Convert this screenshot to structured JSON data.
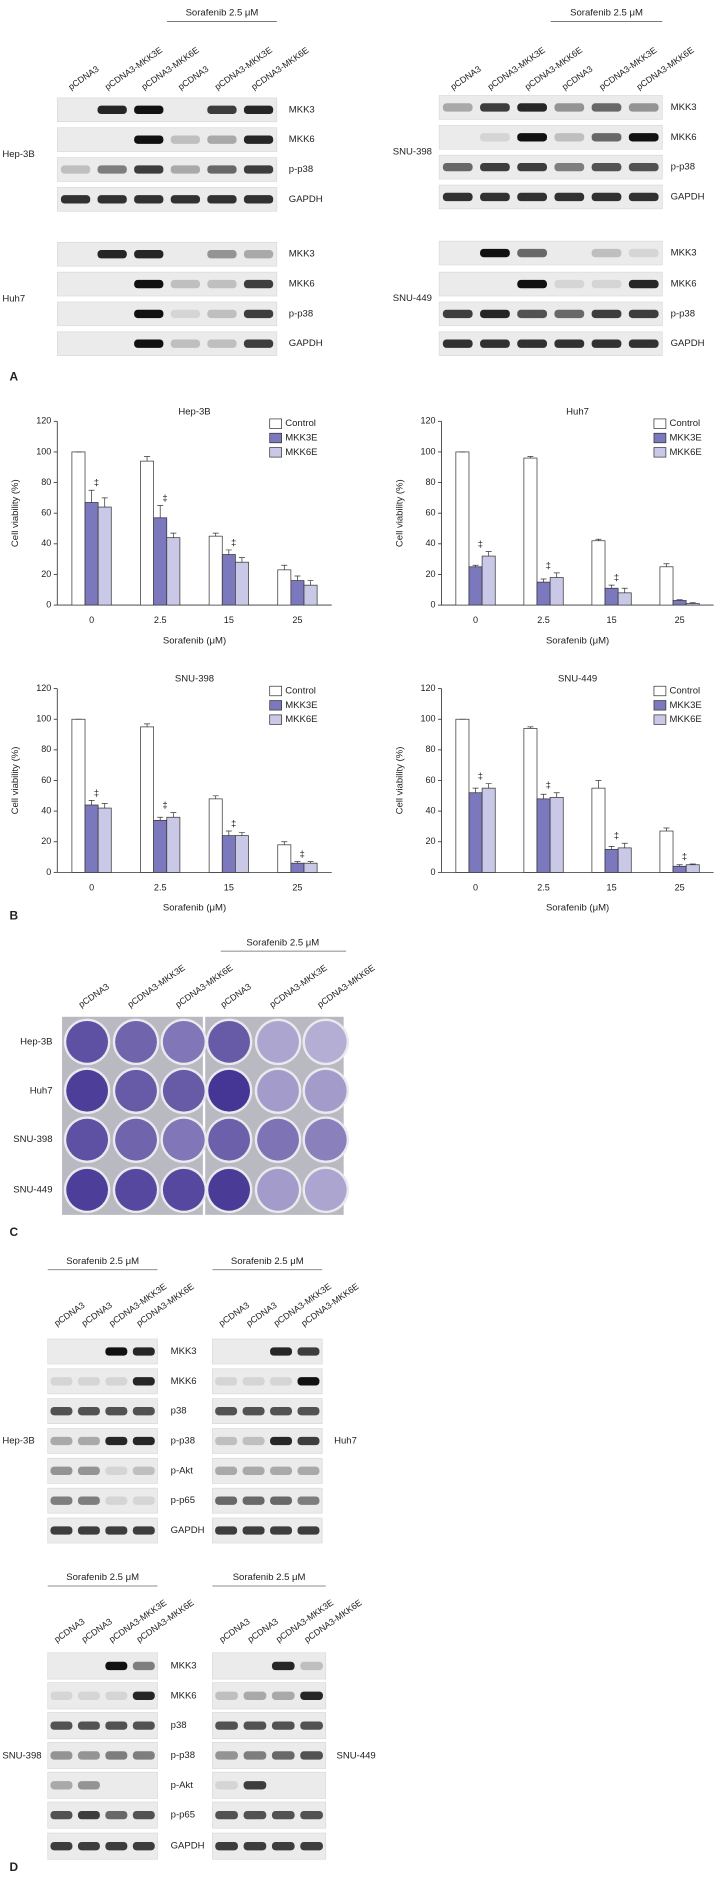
{
  "panel_labels": [
    "A",
    "B",
    "C",
    "D"
  ],
  "panel_a": {
    "blots": [
      {
        "cell_line": "Hep-3B",
        "treatment": "Sorafenib 2.5 μM",
        "lanes": [
          "pCDNA3",
          "pCDNA3-MKK3E",
          "pCDNA3-MKK6E",
          "pCDNA3",
          "pCDNA3-MKK3E",
          "pCDNA3-MKK6E"
        ],
        "proteins": [
          "MKK3",
          "MKK6",
          "p-p38",
          "GAPDH"
        ]
      },
      {
        "cell_line": "Huh7",
        "proteins": [
          "MKK3",
          "MKK6",
          "p-p38",
          "GAPDH"
        ]
      },
      {
        "cell_line": "SNU-398",
        "treatment": "Sorafenib 2.5 μM",
        "lanes": [
          "pCDNA3",
          "pCDNA3-MKK3E",
          "pCDNA3-MKK6E",
          "pCDNA3",
          "pCDNA3-MKK3E",
          "pCDNA3-MKK6E"
        ],
        "proteins": [
          "MKK3",
          "MKK6",
          "p-p38",
          "GAPDH"
        ]
      },
      {
        "cell_line": "SNU-449",
        "proteins": [
          "MKK3",
          "MKK6",
          "p-p38",
          "GAPDH"
        ]
      }
    ]
  },
  "chart_data": [
    {
      "type": "bar",
      "title": "Hep-3B",
      "x_label": "Sorafenib (μM)",
      "y_label": "Cell viability (%)",
      "categories": [
        "0",
        "2.5",
        "15",
        "25"
      ],
      "ylim": [
        0,
        120
      ],
      "yticks": [
        0,
        20,
        40,
        60,
        80,
        100,
        120
      ],
      "series": [
        {
          "name": "Control",
          "color": "#ffffff",
          "values": [
            100,
            94,
            45,
            23
          ],
          "errors": [
            0,
            3,
            2,
            3
          ]
        },
        {
          "name": "MKK3E",
          "color": "#7b78bd",
          "values": [
            67,
            57,
            33,
            16
          ],
          "errors": [
            8,
            8,
            3,
            3
          ]
        },
        {
          "name": "MKK6E",
          "color": "#c9c8e6",
          "values": [
            64,
            44,
            28,
            13
          ],
          "errors": [
            6,
            3,
            3,
            3
          ]
        }
      ],
      "significance": [
        "‡",
        "‡",
        "‡",
        null
      ]
    },
    {
      "type": "bar",
      "title": "Huh7",
      "x_label": "Sorafenib (μM)",
      "y_label": "Cell viability (%)",
      "categories": [
        "0",
        "2.5",
        "15",
        "25"
      ],
      "ylim": [
        0,
        120
      ],
      "yticks": [
        0,
        20,
        40,
        60,
        80,
        100,
        120
      ],
      "series": [
        {
          "name": "Control",
          "color": "#ffffff",
          "values": [
            100,
            96,
            42,
            25
          ],
          "errors": [
            0,
            1,
            1,
            2
          ]
        },
        {
          "name": "MKK3E",
          "color": "#7b78bd",
          "values": [
            25,
            15,
            11,
            3
          ],
          "errors": [
            1,
            2,
            2,
            0.5
          ]
        },
        {
          "name": "MKK6E",
          "color": "#c9c8e6",
          "values": [
            32,
            18,
            8,
            1
          ],
          "errors": [
            3,
            3,
            3,
            0.5
          ]
        }
      ],
      "significance": [
        "‡",
        "‡",
        "‡",
        null
      ]
    },
    {
      "type": "bar",
      "title": "SNU-398",
      "x_label": "Sorafenib (μM)",
      "y_label": "Cell viability (%)",
      "categories": [
        "0",
        "2.5",
        "15",
        "25"
      ],
      "ylim": [
        0,
        120
      ],
      "yticks": [
        0,
        20,
        40,
        60,
        80,
        100,
        120
      ],
      "series": [
        {
          "name": "Control",
          "color": "#ffffff",
          "values": [
            100,
            95,
            48,
            18
          ],
          "errors": [
            0,
            2,
            2,
            2
          ]
        },
        {
          "name": "MKK3E",
          "color": "#7b78bd",
          "values": [
            44,
            34,
            24,
            6
          ],
          "errors": [
            3,
            2,
            3,
            1
          ]
        },
        {
          "name": "MKK6E",
          "color": "#c9c8e6",
          "values": [
            42,
            36,
            24,
            6
          ],
          "errors": [
            3,
            3,
            2,
            1
          ]
        }
      ],
      "significance": [
        "‡",
        "‡",
        "‡",
        "‡"
      ]
    },
    {
      "type": "bar",
      "title": "SNU-449",
      "x_label": "Sorafenib (μM)",
      "y_label": "Cell viability (%)",
      "categories": [
        "0",
        "2.5",
        "15",
        "25"
      ],
      "ylim": [
        0,
        120
      ],
      "yticks": [
        0,
        20,
        40,
        60,
        80,
        100,
        120
      ],
      "series": [
        {
          "name": "Control",
          "color": "#ffffff",
          "values": [
            100,
            94,
            55,
            27
          ],
          "errors": [
            0,
            1,
            5,
            2
          ]
        },
        {
          "name": "MKK3E",
          "color": "#7b78bd",
          "values": [
            52,
            48,
            15,
            4
          ],
          "errors": [
            3,
            3,
            2,
            1
          ]
        },
        {
          "name": "MKK6E",
          "color": "#c9c8e6",
          "values": [
            55,
            49,
            16,
            5
          ],
          "errors": [
            3,
            3,
            3,
            0.5
          ]
        }
      ],
      "significance": [
        "‡",
        "‡",
        "‡",
        "‡"
      ]
    }
  ],
  "panel_c": {
    "treatment": "Sorafenib 2.5 μM",
    "lanes": [
      "pCDNA3",
      "pCDNA3-MKK3E",
      "pCDNA3-MKK6E",
      "pCDNA3",
      "pCDNA3-MKK3E",
      "pCDNA3-MKK6E"
    ],
    "cell_lines": [
      "Hep-3B",
      "Huh7",
      "SNU-398",
      "SNU-449"
    ]
  },
  "panel_d": {
    "blots": [
      {
        "cell_line": "Hep-3B",
        "treatment": "Sorafenib 2.5 μM",
        "lanes": [
          "pCDNA3",
          "pCDNA3",
          "pCDNA3-MKK3E",
          "pCDNA3-MKK6E"
        ],
        "proteins": [
          "MKK3",
          "MKK6",
          "p38",
          "p-p38",
          "p-Akt",
          "p-p65",
          "GAPDH"
        ]
      },
      {
        "cell_line": "Huh7",
        "treatment": "Sorafenib 2.5 μM",
        "lanes": [
          "pCDNA3",
          "pCDNA3",
          "pCDNA3-MKK3E",
          "pCDNA3-MKK6E"
        ]
      },
      {
        "cell_line": "SNU-398",
        "treatment": "Sorafenib 2.5 μM",
        "lanes": [
          "pCDNA3",
          "pCDNA3",
          "pCDNA3-MKK3E",
          "pCDNA3-MKK6E"
        ],
        "proteins": [
          "MKK3",
          "MKK6",
          "p38",
          "p-p38",
          "p-Akt",
          "p-p65",
          "GAPDH"
        ]
      },
      {
        "cell_line": "SNU-449",
        "treatment": "Sorafenib 2.5 μM",
        "lanes": [
          "pCDNA3",
          "pCDNA3",
          "pCDNA3-MKK3E",
          "pCDNA3-MKK6E"
        ]
      }
    ]
  }
}
